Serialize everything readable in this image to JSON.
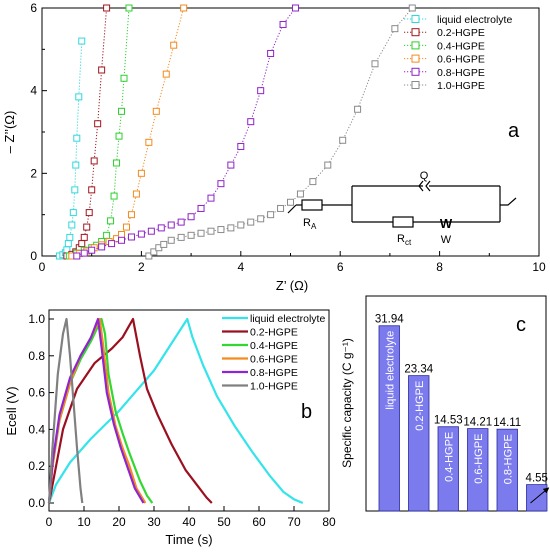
{
  "panels": {
    "a": {
      "label": "a"
    },
    "b": {
      "label": "b"
    },
    "c": {
      "label": "c"
    }
  },
  "circuit": {
    "q_label": "Q",
    "ra_label": "R",
    "ra_sub": "A",
    "rct_label": "R",
    "rct_sub": "ct",
    "w_symbol": "W",
    "w_label": "W"
  },
  "chart_data": [
    {
      "id": "a",
      "type": "scatter",
      "title": "",
      "xlabel": "Z’ (Ω)",
      "ylabel": "– Z’’(Ω)",
      "xlim": [
        0,
        10
      ],
      "ylim": [
        0,
        6
      ],
      "xticks": [
        0,
        2,
        4,
        6,
        8,
        10
      ],
      "yticks": [
        0,
        2,
        4,
        6
      ],
      "legend": "top-right",
      "grid": false,
      "series": [
        {
          "name": "liquid electrolyte",
          "color": "#2fd8df",
          "points": [
            [
              0.35,
              0.0
            ],
            [
              0.42,
              0.03
            ],
            [
              0.47,
              0.08
            ],
            [
              0.5,
              0.15
            ],
            [
              0.53,
              0.3
            ],
            [
              0.56,
              0.45
            ],
            [
              0.6,
              0.75
            ],
            [
              0.63,
              1.05
            ],
            [
              0.66,
              1.6
            ],
            [
              0.68,
              2.2
            ],
            [
              0.7,
              2.85
            ],
            [
              0.74,
              3.85
            ],
            [
              0.8,
              5.2
            ]
          ]
        },
        {
          "name": "0.2-HGPE",
          "color": "#a0161e",
          "points": [
            [
              0.5,
              0.0
            ],
            [
              0.6,
              0.04
            ],
            [
              0.68,
              0.1
            ],
            [
              0.75,
              0.2
            ],
            [
              0.8,
              0.3
            ],
            [
              0.85,
              0.45
            ],
            [
              0.9,
              0.7
            ],
            [
              0.95,
              1.05
            ],
            [
              1.0,
              1.6
            ],
            [
              1.05,
              2.3
            ],
            [
              1.12,
              3.2
            ],
            [
              1.2,
              4.5
            ],
            [
              1.3,
              6.0
            ]
          ]
        },
        {
          "name": "0.4-HGPE",
          "color": "#2ccf2c",
          "points": [
            [
              0.55,
              0.0
            ],
            [
              0.7,
              0.07
            ],
            [
              0.85,
              0.14
            ],
            [
              1.0,
              0.2
            ],
            [
              1.1,
              0.26
            ],
            [
              1.2,
              0.35
            ],
            [
              1.3,
              0.5
            ],
            [
              1.38,
              0.85
            ],
            [
              1.45,
              1.45
            ],
            [
              1.5,
              2.25
            ],
            [
              1.55,
              2.9
            ],
            [
              1.6,
              3.5
            ],
            [
              1.65,
              4.3
            ],
            [
              1.75,
              6.0
            ]
          ]
        },
        {
          "name": "0.6-HGPE",
          "color": "#f48a1c",
          "points": [
            [
              0.6,
              0.0
            ],
            [
              0.75,
              0.06
            ],
            [
              0.9,
              0.12
            ],
            [
              1.05,
              0.2
            ],
            [
              1.2,
              0.27
            ],
            [
              1.35,
              0.35
            ],
            [
              1.5,
              0.42
            ],
            [
              1.6,
              0.52
            ],
            [
              1.7,
              0.7
            ],
            [
              1.8,
              1.0
            ],
            [
              1.9,
              1.5
            ],
            [
              2.0,
              2.0
            ],
            [
              2.15,
              2.75
            ],
            [
              2.3,
              3.5
            ],
            [
              2.5,
              4.4
            ],
            [
              2.65,
              5.1
            ],
            [
              2.85,
              6.0
            ]
          ]
        },
        {
          "name": "0.8-HGPE",
          "color": "#8e22c8",
          "points": [
            [
              0.7,
              0.0
            ],
            [
              0.85,
              0.07
            ],
            [
              1.0,
              0.14
            ],
            [
              1.2,
              0.22
            ],
            [
              1.4,
              0.3
            ],
            [
              1.6,
              0.38
            ],
            [
              1.8,
              0.46
            ],
            [
              2.0,
              0.53
            ],
            [
              2.2,
              0.6
            ],
            [
              2.4,
              0.68
            ],
            [
              2.6,
              0.75
            ],
            [
              2.8,
              0.82
            ],
            [
              3.0,
              0.95
            ],
            [
              3.2,
              1.15
            ],
            [
              3.4,
              1.4
            ],
            [
              3.6,
              1.75
            ],
            [
              3.8,
              2.2
            ],
            [
              4.0,
              2.65
            ],
            [
              4.2,
              3.25
            ],
            [
              4.4,
              4.0
            ],
            [
              4.6,
              4.9
            ],
            [
              4.85,
              5.6
            ],
            [
              5.1,
              6.0
            ]
          ]
        },
        {
          "name": "1.0-HGPE",
          "color": "#8a8a8a",
          "points": [
            [
              2.15,
              0.0
            ],
            [
              2.25,
              0.1
            ],
            [
              2.35,
              0.2
            ],
            [
              2.45,
              0.28
            ],
            [
              2.6,
              0.38
            ],
            [
              2.8,
              0.45
            ],
            [
              3.0,
              0.5
            ],
            [
              3.2,
              0.55
            ],
            [
              3.4,
              0.6
            ],
            [
              3.6,
              0.64
            ],
            [
              3.8,
              0.68
            ],
            [
              4.0,
              0.75
            ],
            [
              4.2,
              0.82
            ],
            [
              4.4,
              0.9
            ],
            [
              4.6,
              1.0
            ],
            [
              4.8,
              1.15
            ],
            [
              5.0,
              1.3
            ],
            [
              5.2,
              1.5
            ],
            [
              5.45,
              1.8
            ],
            [
              5.75,
              2.2
            ],
            [
              6.05,
              2.8
            ],
            [
              6.35,
              3.55
            ],
            [
              6.7,
              4.65
            ],
            [
              7.1,
              5.5
            ],
            [
              7.45,
              6.0
            ]
          ]
        }
      ]
    },
    {
      "id": "b",
      "type": "line",
      "title": "",
      "xlabel": "Time (s)",
      "ylabel": "Ecell (V)",
      "xlim": [
        0,
        80
      ],
      "ylim": [
        0,
        1.0
      ],
      "xticks": [
        0,
        10,
        20,
        30,
        40,
        50,
        60,
        70,
        80
      ],
      "yticks": [
        0.0,
        0.2,
        0.4,
        0.6,
        0.8,
        1.0
      ],
      "legend": "top-right",
      "grid": false,
      "series": [
        {
          "name": "liquid electrolyte",
          "color": "#34e4ea",
          "x": [
            0,
            2,
            6,
            12,
            20,
            30,
            39.5,
            41,
            44,
            48,
            53,
            58,
            63,
            67,
            70,
            72.5
          ],
          "y": [
            0.0,
            0.1,
            0.22,
            0.35,
            0.5,
            0.72,
            1.0,
            0.9,
            0.75,
            0.58,
            0.42,
            0.28,
            0.15,
            0.06,
            0.02,
            0.0
          ]
        },
        {
          "name": "0.2-HGPE",
          "color": "#9a1020",
          "x": [
            0,
            1.5,
            4,
            8,
            13,
            18,
            21,
            24,
            26,
            28,
            31,
            35,
            39,
            43,
            45,
            46.5
          ],
          "y": [
            0.0,
            0.15,
            0.4,
            0.62,
            0.76,
            0.84,
            0.9,
            1.0,
            0.8,
            0.62,
            0.48,
            0.32,
            0.18,
            0.08,
            0.03,
            0.0
          ]
        },
        {
          "name": "0.4-HGPE",
          "color": "#32d832",
          "x": [
            0,
            1,
            3,
            6,
            9,
            12,
            15,
            16,
            17,
            19,
            21,
            23,
            26,
            28,
            29.5
          ],
          "y": [
            0.0,
            0.2,
            0.45,
            0.65,
            0.78,
            0.88,
            1.0,
            0.92,
            0.7,
            0.5,
            0.38,
            0.27,
            0.12,
            0.04,
            0.0
          ]
        },
        {
          "name": "0.6-HGPE",
          "color": "#f58a1e",
          "x": [
            0,
            1,
            3,
            6,
            9,
            12,
            14.5,
            15.5,
            17,
            19,
            21,
            23,
            25,
            27.5
          ],
          "y": [
            0.0,
            0.2,
            0.45,
            0.65,
            0.8,
            0.9,
            1.0,
            0.85,
            0.6,
            0.42,
            0.3,
            0.2,
            0.08,
            0.0
          ]
        },
        {
          "name": "0.8-HGPE",
          "color": "#8c25d2",
          "x": [
            0,
            1,
            3,
            6,
            9,
            12,
            14,
            15,
            16.5,
            18.5,
            20.5,
            22.5,
            24.5,
            27
          ],
          "y": [
            0.0,
            0.22,
            0.48,
            0.68,
            0.8,
            0.9,
            1.0,
            0.85,
            0.6,
            0.43,
            0.3,
            0.19,
            0.08,
            0.0
          ]
        },
        {
          "name": "1.0-HGPE",
          "color": "#808080",
          "x": [
            0,
            1,
            2.5,
            4,
            5,
            6,
            7,
            8,
            9,
            9.5
          ],
          "y": [
            0.0,
            0.3,
            0.7,
            0.92,
            1.0,
            0.8,
            0.55,
            0.3,
            0.08,
            0.0
          ]
        }
      ]
    },
    {
      "id": "c",
      "type": "bar",
      "title": "",
      "xlabel": "",
      "ylabel": "Specific capacity (C g⁻¹)",
      "ylim": [
        0,
        35
      ],
      "categories": [
        "liquid electrolyte",
        "0.2-HGPE",
        "0.4-HGPE",
        "0.6-HGPE",
        "0.8-HGPE",
        "1.0-HGPE"
      ],
      "values": [
        31.94,
        23.34,
        14.53,
        14.21,
        14.11,
        4.55
      ],
      "value_labels": [
        "31.94",
        "23.34",
        "14.53",
        "14.21",
        "14.11",
        "4.55"
      ],
      "bar_color": "#7b7bee",
      "bar_edge": "#2a2aa0"
    }
  ]
}
